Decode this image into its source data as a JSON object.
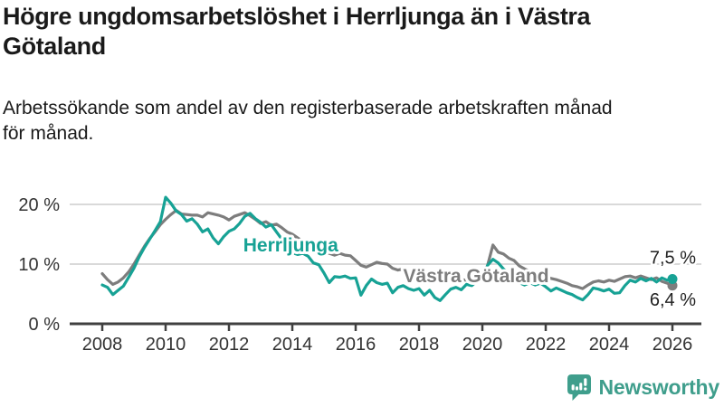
{
  "header": {
    "title": "Högre ungdomsarbetslöshet i Herrljunga än i Västra\nGötaland",
    "subtitle": "Arbetssökande som andel av den registerbaserade arbetskraften månad\nför månad."
  },
  "chart_data": {
    "type": "line",
    "title": "Högre ungdomsarbetslöshet i Herrljunga än i Västra Götaland",
    "xlabel": "",
    "ylabel": "",
    "unit": "%",
    "x_start_year": 2008,
    "x_step_months": 2,
    "x_end_year": 2026,
    "x_tick_years": [
      "2008",
      "2010",
      "2012",
      "2014",
      "2016",
      "2018",
      "2020",
      "2022",
      "2024",
      "2026"
    ],
    "y_tick_labels": [
      "0 %",
      "10 %",
      "20 %"
    ],
    "y_tick_values": [
      0,
      10,
      20
    ],
    "ylim": [
      0,
      22
    ],
    "grid": "horizontal",
    "legend_position": "inline-labels",
    "series": [
      {
        "name": "Herrljunga",
        "color": "#17a295",
        "end_label": "7,5 %",
        "end_value": 7.5,
        "label_year": 2012.45,
        "label_value": 12.1,
        "values": [
          6.5,
          6.1,
          4.9,
          5.6,
          6.3,
          7.8,
          9.3,
          11.2,
          12.8,
          14.2,
          15.6,
          17.1,
          21.2,
          20.2,
          18.9,
          18.3,
          17.2,
          17.6,
          16.7,
          15.4,
          15.9,
          14.4,
          13.4,
          14.6,
          15.5,
          15.9,
          16.8,
          18.0,
          18.5,
          17.6,
          17.0,
          16.2,
          16.6,
          15.4,
          14.2,
          12.8,
          11.9,
          11.6,
          11.8,
          11.3,
          10.2,
          9.9,
          8.5,
          6.9,
          7.9,
          7.8,
          8.0,
          7.6,
          7.7,
          4.8,
          6.4,
          7.5,
          6.9,
          6.6,
          6.8,
          5.2,
          6.1,
          6.4,
          5.9,
          5.6,
          5.9,
          4.8,
          5.6,
          4.4,
          3.9,
          4.9,
          5.8,
          6.1,
          5.7,
          6.6,
          6.4,
          7.2,
          7.6,
          9.8,
          10.8,
          10.2,
          9.2,
          8.4,
          7.8,
          6.9,
          6.5,
          6.9,
          6.5,
          6.8,
          6.2,
          5.5,
          6.0,
          5.6,
          5.2,
          4.9,
          4.4,
          4.0,
          4.9,
          6.0,
          5.8,
          5.5,
          5.8,
          5.1,
          5.2,
          6.4,
          7.3,
          7.0,
          7.6,
          7.2,
          7.6,
          7.0,
          7.7,
          7.3,
          7.5
        ]
      },
      {
        "name": "Västra Götaland",
        "color": "#7d7d7d",
        "end_label": "6,4 %",
        "end_value": 6.4,
        "label_year": 2017.5,
        "label_value": 7.0,
        "values": [
          8.4,
          7.4,
          6.6,
          7.0,
          7.7,
          8.7,
          10.0,
          11.5,
          13.0,
          14.3,
          15.4,
          16.6,
          17.5,
          18.3,
          19.0,
          18.4,
          18.3,
          18.2,
          18.2,
          17.9,
          18.6,
          18.4,
          18.2,
          17.9,
          17.4,
          18.0,
          18.3,
          18.6,
          18.1,
          17.5,
          16.8,
          17.1,
          16.5,
          16.7,
          16.1,
          15.4,
          15.0,
          14.4,
          13.8,
          13.1,
          12.5,
          11.9,
          11.6,
          11.8,
          11.5,
          11.8,
          11.5,
          11.4,
          10.6,
          9.8,
          9.5,
          9.9,
          10.3,
          10.1,
          10.0,
          9.3,
          9.0,
          9.2,
          8.7,
          8.5,
          8.1,
          8.0,
          8.3,
          8.2,
          7.9,
          7.8,
          7.7,
          7.5,
          7.4,
          7.3,
          7.5,
          7.7,
          7.9,
          9.8,
          13.2,
          12.0,
          11.7,
          11.0,
          10.6,
          9.7,
          9.2,
          8.8,
          8.3,
          7.9,
          7.9,
          7.6,
          7.4,
          7.1,
          6.8,
          6.4,
          6.2,
          5.9,
          6.5,
          7.0,
          7.2,
          7.0,
          7.3,
          7.1,
          7.5,
          7.9,
          8.0,
          7.7,
          8.0,
          7.7,
          7.4,
          7.7,
          7.1,
          6.8,
          6.4
        ]
      }
    ]
  },
  "colors": {
    "grid": "#d9d9d9",
    "axis": "#404040",
    "tick_text": "#333333",
    "value_label_text": "#222222",
    "title_text": "#1a1a1a"
  },
  "footer": {
    "brand": "Newsworthy",
    "brand_color": "#3f9e8c",
    "logo_icon": "newsworthy-speech-bubble-bar-chart-icon"
  }
}
